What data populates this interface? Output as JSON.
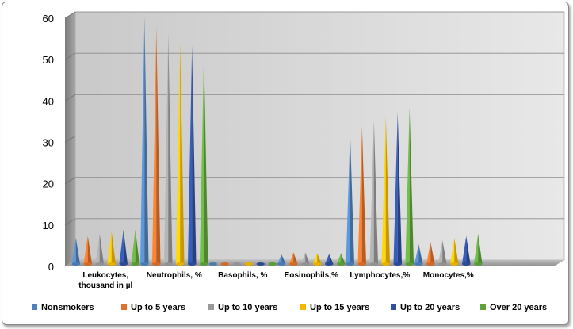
{
  "chart_data": {
    "type": "bar",
    "style": "3d-cone",
    "categories": [
      [
        "Leukocytes,",
        "thousand in µl"
      ],
      [
        "Neutrophils, %"
      ],
      [
        "Basophils, %"
      ],
      [
        "Eosinophils,%"
      ],
      [
        "Lymphocytes,%"
      ],
      [
        "Monocytes,%"
      ]
    ],
    "series": [
      {
        "name": "Nonsmokers",
        "color": "#4f81bd",
        "values": [
          6.5,
          60,
          0.5,
          2.5,
          32,
          5
        ]
      },
      {
        "name": "Up to 5 years",
        "color": "#e0702a",
        "values": [
          7,
          57.5,
          0.7,
          3,
          33.5,
          5.5
        ]
      },
      {
        "name": "Up to 10 years",
        "color": "#9a9a9a",
        "values": [
          7.5,
          56,
          0.6,
          3,
          35,
          6
        ]
      },
      {
        "name": "Up to 15 years",
        "color": "#f5b800",
        "values": [
          8,
          54,
          0.6,
          2.8,
          36,
          6.5
        ]
      },
      {
        "name": "Up to 20 years",
        "color": "#2e4f9f",
        "values": [
          8.5,
          53,
          0.6,
          2.6,
          37,
          7
        ]
      },
      {
        "name": "Over 20 years",
        "color": "#5fa33c",
        "values": [
          8.5,
          51,
          0.7,
          2.8,
          38,
          7.5
        ]
      }
    ],
    "yticks": [
      "0",
      "10",
      "20",
      "30",
      "40",
      "50",
      "60"
    ],
    "ylim": [
      0,
      60
    ],
    "grid": true,
    "legend": "bottom",
    "title": "",
    "xlabel": "",
    "ylabel": ""
  }
}
